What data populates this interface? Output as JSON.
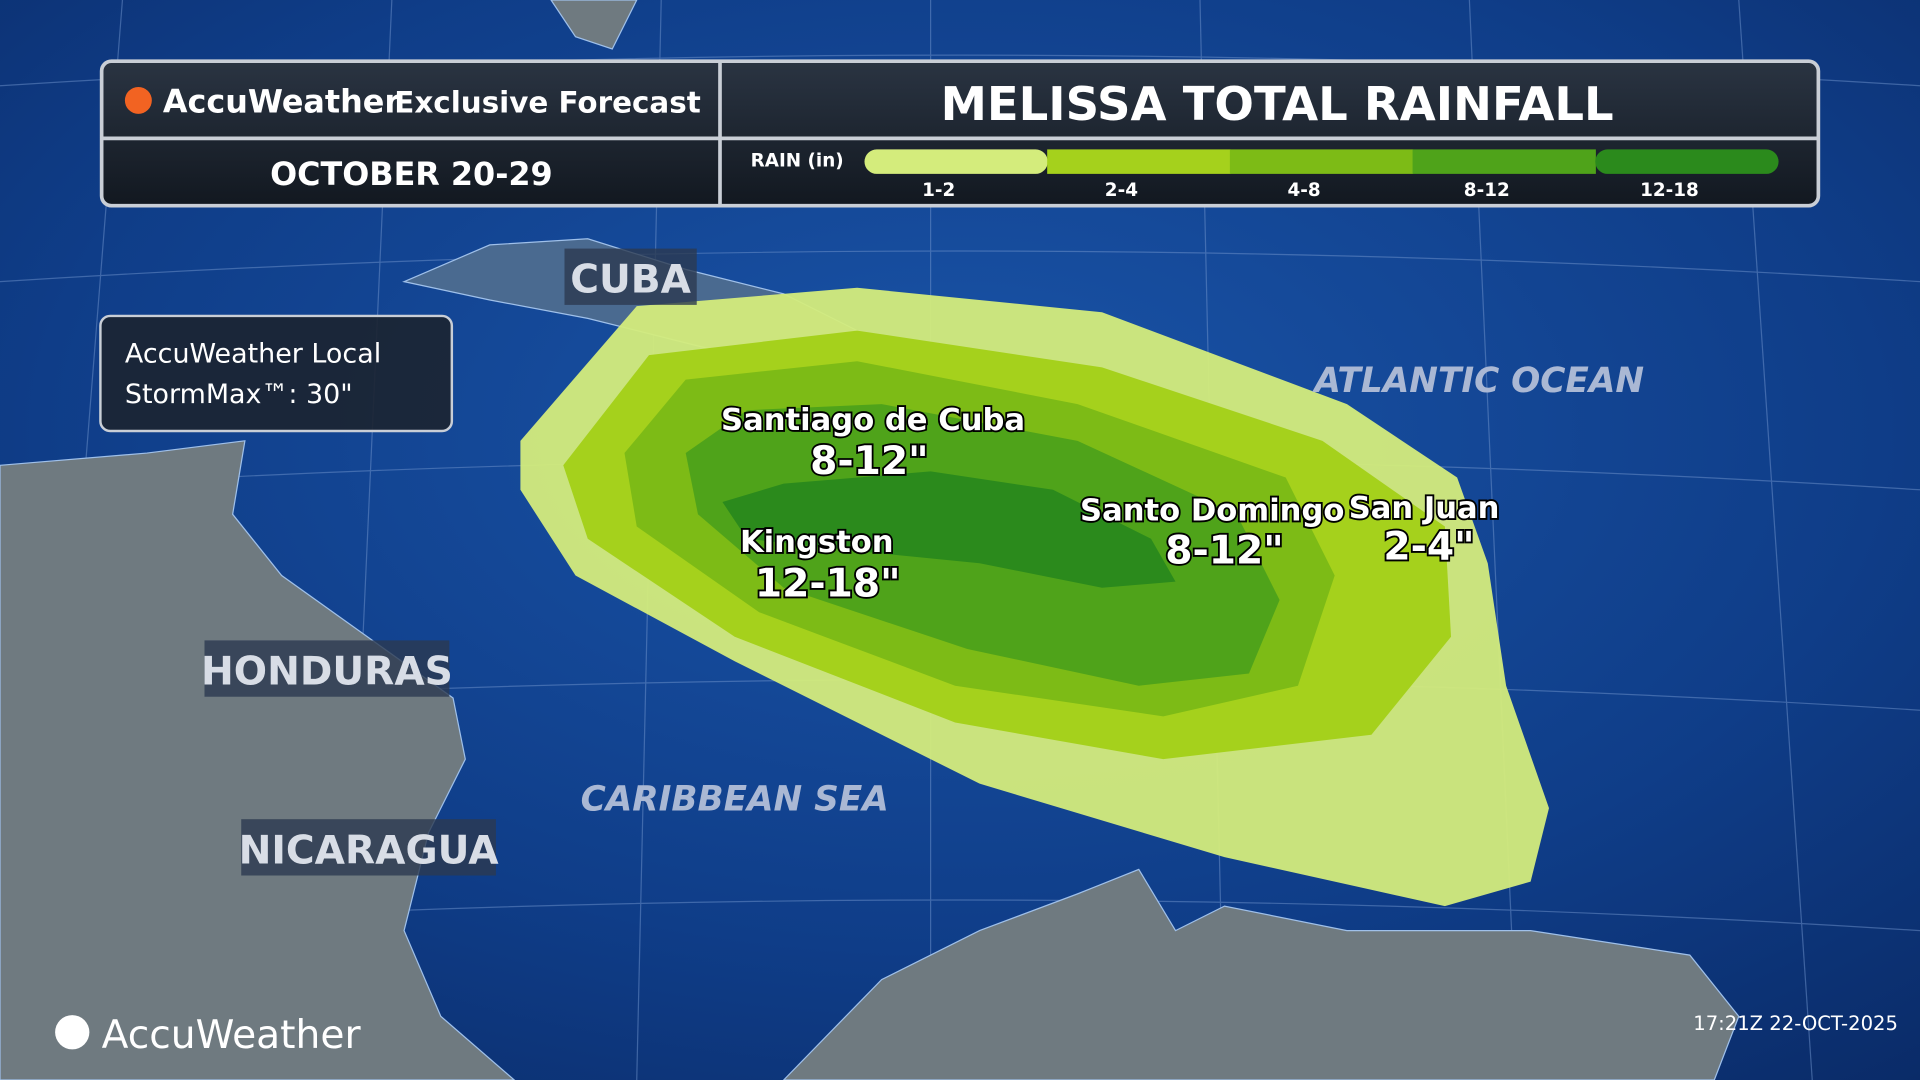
{
  "header": {
    "brand": "AccuWeather",
    "subtitle": "Exclusive Forecast",
    "title": "MELISSA TOTAL RAINFALL",
    "dates": "OCTOBER 20-29"
  },
  "legend": {
    "label": "RAIN (in)",
    "items": [
      {
        "label": "1-2",
        "color": "#d4ec7c"
      },
      {
        "label": "2-4",
        "color": "#a5d11c"
      },
      {
        "label": "4-8",
        "color": "#7dbb16"
      },
      {
        "label": "8-12",
        "color": "#4fa31a"
      },
      {
        "label": "12-18",
        "color": "#2b8a1c"
      }
    ]
  },
  "info_box": {
    "line1": "AccuWeather Local",
    "line2": "StormMax™: 30\""
  },
  "countries": [
    "CUBA",
    "HONDURAS",
    "NICARAGUA"
  ],
  "water": [
    "ATLANTIC OCEAN",
    "CARIBBEAN SEA"
  ],
  "cities": [
    {
      "name": "Santiago de Cuba",
      "amount": "8-12\""
    },
    {
      "name": "Kingston",
      "amount": "12-18\""
    },
    {
      "name": "Santo Domingo",
      "amount": "8-12\""
    },
    {
      "name": "San Juan",
      "amount": "2-4\""
    }
  ],
  "footer": {
    "logo": "AccuWeather",
    "timestamp": "17:21Z 22-OCT-2025"
  }
}
